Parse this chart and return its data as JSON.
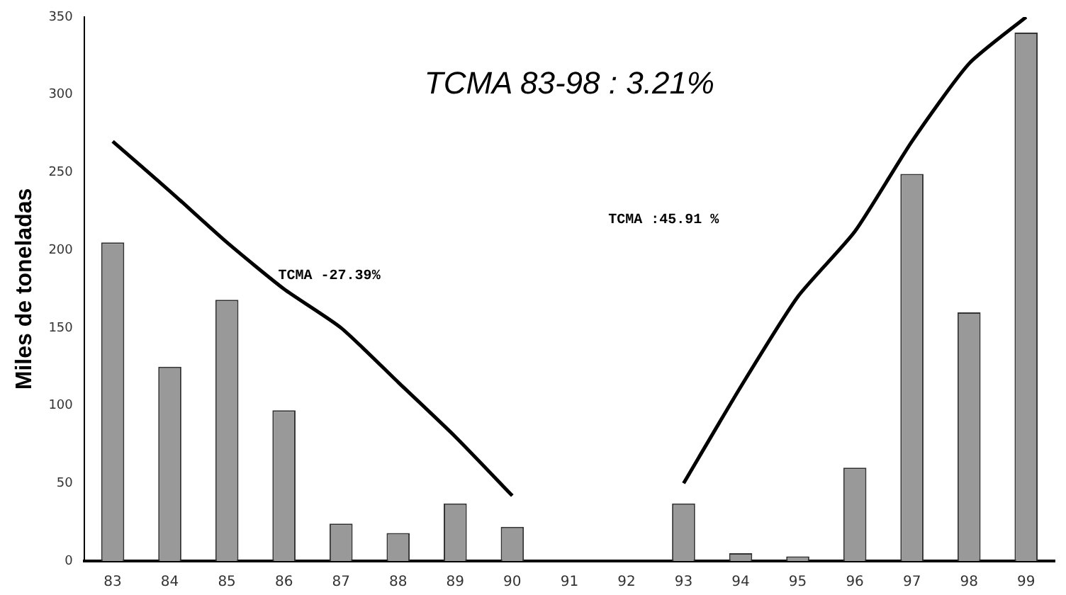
{
  "chart_data": {
    "type": "bar",
    "ylabel": "Miles de toneladas",
    "categories": [
      "83",
      "84",
      "85",
      "86",
      "87",
      "88",
      "89",
      "90",
      "91",
      "92",
      "93",
      "94",
      "95",
      "96",
      "97",
      "98",
      "99"
    ],
    "series": [
      {
        "color": "#999999",
        "values": [
          205,
          125,
          168,
          97,
          24,
          18,
          37,
          22,
          null,
          null,
          37,
          5,
          3,
          60,
          249,
          160,
          340
        ]
      },
      {
        "type": "line",
        "color": "#000000",
        "values": [
          270,
          238,
          205,
          175,
          150,
          115,
          80,
          42,
          null,
          null,
          null,
          null,
          null,
          null,
          null,
          null,
          null
        ]
      },
      {
        "type": "line",
        "color": "#000000",
        "values": [
          null,
          null,
          null,
          null,
          null,
          null,
          null,
          null,
          null,
          null,
          50,
          112,
          170,
          212,
          270,
          320,
          350
        ]
      }
    ],
    "ylim": [
      0,
      350
    ],
    "yticks": [
      0,
      50,
      100,
      150,
      200,
      250,
      300,
      350
    ],
    "grid": false,
    "legend": false,
    "marker": "none",
    "annotations": [
      "TCMA 83-98 : 3.21%",
      "TCMA -27.39%",
      "TCMA :45.91 %"
    ]
  }
}
